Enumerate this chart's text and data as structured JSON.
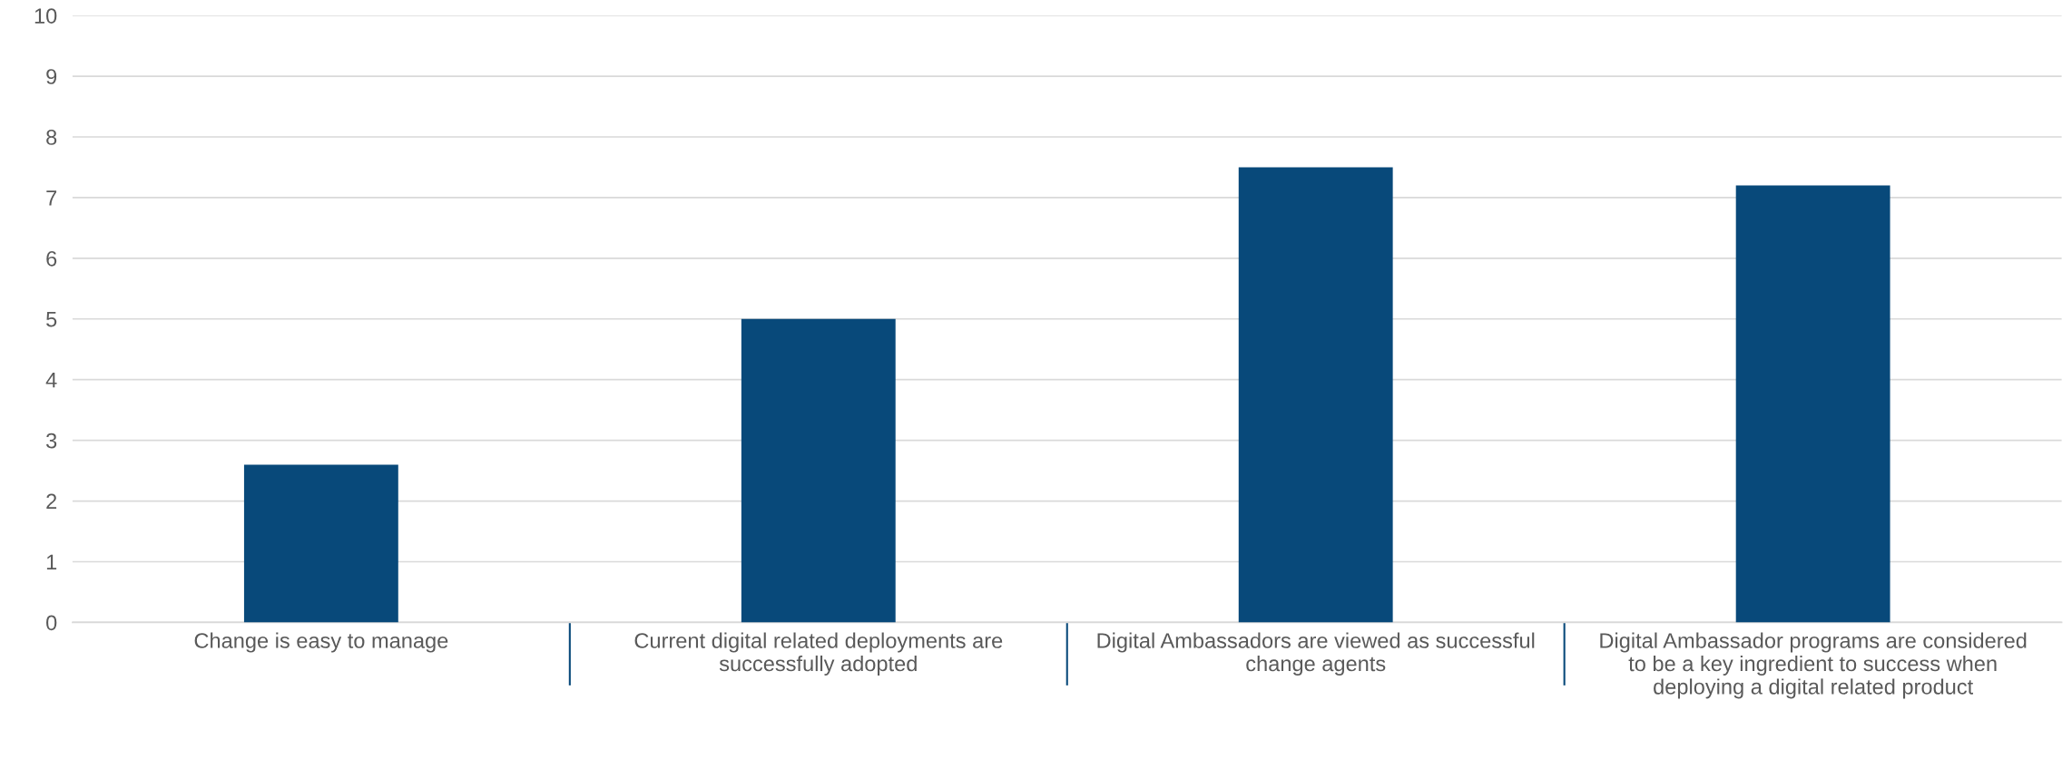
{
  "chart_data": {
    "type": "bar",
    "categories": [
      "Change is easy to manage",
      "Current digital related deployments are successfully adopted",
      "Digital Ambassadors are viewed as successful change agents",
      "Digital Ambassador programs are considered to be a key ingredient to success when deploying a digital related product"
    ],
    "values": [
      2.6,
      5.0,
      7.5,
      7.2
    ],
    "color": "#08497a",
    "ylim": [
      0,
      10
    ],
    "yticks": [
      0,
      1,
      2,
      3,
      4,
      5,
      6,
      7,
      8,
      9,
      10
    ],
    "grid": "y"
  }
}
